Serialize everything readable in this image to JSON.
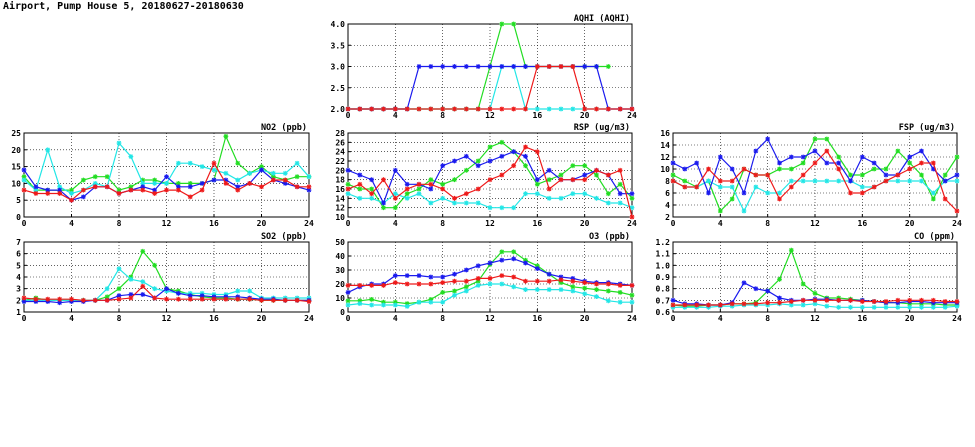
{
  "page": {
    "title": "Airport, Pump House 5, 20180627-20180630"
  },
  "colors": {
    "green": "#22dd22",
    "cyan": "#22e6e6",
    "blue": "#1a1aee",
    "red": "#ee1a1a"
  },
  "chart_data": [
    {
      "id": "aqhi",
      "type": "line",
      "title": "AQHI (AQHI)",
      "x": [
        0,
        1,
        2,
        3,
        4,
        5,
        6,
        7,
        8,
        9,
        10,
        11,
        12,
        13,
        14,
        15,
        16,
        17,
        18,
        19,
        20,
        21,
        22,
        23,
        24
      ],
      "xticks": [
        0,
        4,
        8,
        12,
        16,
        20,
        24
      ],
      "ylim": [
        2.0,
        4.0
      ],
      "yticks": [
        "2.0",
        "2.5",
        "3.0",
        "3.5",
        "4.0"
      ],
      "ytick_values": [
        2.0,
        2.5,
        3.0,
        3.5,
        4.0
      ],
      "series": [
        {
          "color": "green",
          "values": [
            2,
            2,
            2,
            2,
            2,
            2,
            2,
            2,
            2,
            2,
            2,
            2,
            3,
            4,
            4,
            3,
            3,
            3,
            3,
            3,
            3,
            3,
            3,
            null,
            null
          ]
        },
        {
          "color": "cyan",
          "values": [
            2,
            2,
            2,
            2,
            2,
            2,
            2,
            2,
            2,
            2,
            2,
            2,
            2,
            3,
            3,
            2,
            2,
            2,
            2,
            2,
            2,
            2,
            2,
            2,
            2
          ]
        },
        {
          "color": "blue",
          "values": [
            2,
            2,
            2,
            2,
            2,
            2,
            3,
            3,
            3,
            3,
            3,
            3,
            3,
            3,
            3,
            3,
            3,
            3,
            3,
            3,
            3,
            3,
            2,
            2,
            2
          ]
        },
        {
          "color": "red",
          "values": [
            2,
            2,
            2,
            2,
            2,
            2,
            2,
            2,
            2,
            2,
            2,
            2,
            2,
            2,
            2,
            2,
            3,
            3,
            3,
            3,
            2,
            2,
            2,
            2,
            2
          ]
        }
      ]
    },
    {
      "id": "no2",
      "type": "line",
      "title": "NO2 (ppb)",
      "x": [
        0,
        1,
        2,
        3,
        4,
        5,
        6,
        7,
        8,
        9,
        10,
        11,
        12,
        13,
        14,
        15,
        16,
        17,
        18,
        19,
        20,
        21,
        22,
        23,
        24
      ],
      "xticks": [
        0,
        4,
        8,
        12,
        16,
        20,
        24
      ],
      "ylim": [
        0,
        25
      ],
      "yticks": [
        "0",
        "5",
        "10",
        "15",
        "20",
        "25"
      ],
      "ytick_values": [
        0,
        5,
        10,
        15,
        20,
        25
      ],
      "series": [
        {
          "color": "green",
          "values": [
            12,
            8,
            8,
            8,
            8,
            11,
            12,
            12,
            8,
            9,
            11,
            11,
            10,
            10,
            10,
            10,
            11,
            24,
            16,
            13,
            15,
            12,
            11,
            12,
            12
          ]
        },
        {
          "color": "cyan",
          "values": [
            11,
            8,
            20,
            9,
            7,
            8,
            10,
            9,
            22,
            18,
            10,
            10,
            10,
            16,
            16,
            15,
            14,
            13,
            11,
            13,
            14,
            13,
            13,
            16,
            12
          ]
        },
        {
          "color": "blue",
          "values": [
            14,
            9,
            8,
            8,
            5,
            6,
            9,
            9,
            7,
            8,
            9,
            8,
            12,
            9,
            9,
            10,
            11,
            11,
            9,
            10,
            14,
            11,
            10,
            9,
            8
          ]
        },
        {
          "color": "red",
          "values": [
            8,
            7,
            7,
            7,
            5,
            8,
            9,
            9,
            7,
            8,
            8,
            7,
            8,
            8,
            6,
            8,
            16,
            10,
            8,
            10,
            9,
            11,
            11,
            9,
            9
          ]
        }
      ]
    },
    {
      "id": "rsp",
      "type": "line",
      "title": "RSP (ug/m3)",
      "x": [
        0,
        1,
        2,
        3,
        4,
        5,
        6,
        7,
        8,
        9,
        10,
        11,
        12,
        13,
        14,
        15,
        16,
        17,
        18,
        19,
        20,
        21,
        22,
        23,
        24
      ],
      "xticks": [
        0,
        4,
        8,
        12,
        16,
        20,
        24
      ],
      "ylim": [
        10,
        28
      ],
      "yticks": [
        "10",
        "12",
        "14",
        "16",
        "18",
        "20",
        "22",
        "24",
        "26",
        "28"
      ],
      "ytick_values": [
        10,
        12,
        14,
        16,
        18,
        20,
        22,
        24,
        26,
        28
      ],
      "series": [
        {
          "color": "green",
          "values": [
            17,
            16,
            16,
            12,
            12,
            15,
            16,
            18,
            17,
            18,
            20,
            22,
            25,
            26,
            24,
            21,
            17,
            18,
            19,
            21,
            21,
            19,
            15,
            17,
            14
          ]
        },
        {
          "color": "cyan",
          "values": [
            15,
            14,
            14,
            13,
            15,
            14,
            15,
            13,
            14,
            13,
            13,
            13,
            12,
            12,
            12,
            15,
            15,
            14,
            14,
            15,
            15,
            14,
            13,
            13,
            12
          ]
        },
        {
          "color": "blue",
          "values": [
            20,
            19,
            18,
            13,
            20,
            17,
            17,
            16,
            21,
            22,
            23,
            21,
            22,
            23,
            24,
            23,
            18,
            20,
            18,
            18,
            19,
            20,
            19,
            15,
            15
          ]
        },
        {
          "color": "red",
          "values": [
            16,
            17,
            15,
            18,
            14,
            16,
            17,
            17,
            16,
            14,
            15,
            16,
            18,
            19,
            21,
            25,
            24,
            16,
            18,
            18,
            18,
            20,
            19,
            20,
            10
          ]
        }
      ]
    },
    {
      "id": "fsp",
      "type": "line",
      "title": "FSP (ug/m3)",
      "x": [
        0,
        1,
        2,
        3,
        4,
        5,
        6,
        7,
        8,
        9,
        10,
        11,
        12,
        13,
        14,
        15,
        16,
        17,
        18,
        19,
        20,
        21,
        22,
        23,
        24
      ],
      "xticks": [
        0,
        4,
        8,
        12,
        16,
        20,
        24
      ],
      "ylim": [
        2,
        16
      ],
      "yticks": [
        "2",
        "4",
        "6",
        "8",
        "10",
        "12",
        "14",
        "16"
      ],
      "ytick_values": [
        2,
        4,
        6,
        8,
        10,
        12,
        14,
        16
      ],
      "series": [
        {
          "color": "green",
          "values": [
            9,
            8,
            7,
            8,
            3,
            5,
            10,
            9,
            9,
            10,
            10,
            11,
            15,
            15,
            12,
            9,
            9,
            10,
            10,
            13,
            11,
            9,
            5,
            9,
            12
          ]
        },
        {
          "color": "cyan",
          "values": [
            8,
            7,
            7,
            8,
            7,
            7,
            3,
            7,
            6,
            6,
            8,
            8,
            8,
            8,
            8,
            8,
            7,
            7,
            8,
            8,
            8,
            8,
            6,
            8,
            8
          ]
        },
        {
          "color": "blue",
          "values": [
            11,
            10,
            11,
            6,
            12,
            10,
            6,
            13,
            15,
            11,
            12,
            12,
            13,
            11,
            11,
            8,
            12,
            11,
            9,
            9,
            12,
            13,
            10,
            8,
            9
          ]
        },
        {
          "color": "red",
          "values": [
            8,
            7,
            7,
            10,
            8,
            8,
            10,
            9,
            9,
            5,
            7,
            9,
            11,
            13,
            10,
            6,
            6,
            7,
            8,
            9,
            10,
            11,
            11,
            5,
            3
          ]
        }
      ]
    },
    {
      "id": "so2",
      "type": "line",
      "title": "SO2 (ppb)",
      "x": [
        0,
        1,
        2,
        3,
        4,
        5,
        6,
        7,
        8,
        9,
        10,
        11,
        12,
        13,
        14,
        15,
        16,
        17,
        18,
        19,
        20,
        21,
        22,
        23,
        24
      ],
      "xticks": [
        0,
        4,
        8,
        12,
        16,
        20,
        24
      ],
      "ylim": [
        1,
        7
      ],
      "yticks": [
        "1",
        "2",
        "3",
        "4",
        "5",
        "6",
        "7"
      ],
      "ytick_values": [
        1,
        2,
        3,
        4,
        5,
        6,
        7
      ],
      "series": [
        {
          "color": "green",
          "values": [
            2,
            2.2,
            2,
            2,
            2,
            2,
            2,
            2.3,
            3,
            4,
            6.2,
            5,
            3,
            2.8,
            2.5,
            2.3,
            2.2,
            2.2,
            2.1,
            2.1,
            2,
            2,
            2,
            2,
            2
          ]
        },
        {
          "color": "cyan",
          "values": [
            2,
            2,
            2,
            2,
            2,
            2,
            2,
            3,
            4.7,
            3.8,
            3.6,
            3,
            2.8,
            2.6,
            2.6,
            2.6,
            2.5,
            2.5,
            2.8,
            2.8,
            2.2,
            2.2,
            2.2,
            2.2,
            2.2
          ]
        },
        {
          "color": "blue",
          "values": [
            1.9,
            1.9,
            1.9,
            1.8,
            1.9,
            1.9,
            2,
            2,
            2.4,
            2.5,
            2.5,
            2.2,
            3,
            2.6,
            2.4,
            2.4,
            2.3,
            2.3,
            2.3,
            2.2,
            2.1,
            2.1,
            2,
            2,
            2
          ]
        },
        {
          "color": "red",
          "values": [
            2.2,
            2.1,
            2.1,
            2.1,
            2.1,
            2,
            2,
            2,
            2.1,
            2.2,
            3.2,
            2.2,
            2.1,
            2.1,
            2.1,
            2.1,
            2.1,
            2.1,
            2.1,
            2.1,
            2,
            2,
            2,
            2,
            1.9
          ]
        }
      ]
    },
    {
      "id": "o3",
      "type": "line",
      "title": "O3 (ppb)",
      "x": [
        0,
        1,
        2,
        3,
        4,
        5,
        6,
        7,
        8,
        9,
        10,
        11,
        12,
        13,
        14,
        15,
        16,
        17,
        18,
        19,
        20,
        21,
        22,
        23,
        24
      ],
      "xticks": [
        0,
        4,
        8,
        12,
        16,
        20,
        24
      ],
      "ylim": [
        0,
        50
      ],
      "yticks": [
        "0",
        "10",
        "20",
        "30",
        "40",
        "50"
      ],
      "ytick_values": [
        0,
        10,
        20,
        30,
        40,
        50
      ],
      "series": [
        {
          "color": "green",
          "values": [
            8,
            8,
            9,
            7,
            7,
            6,
            7,
            9,
            14,
            15,
            18,
            22,
            34,
            43,
            43,
            37,
            33,
            27,
            21,
            18,
            17,
            16,
            15,
            14,
            12
          ]
        },
        {
          "color": "cyan",
          "values": [
            5,
            6,
            5,
            5,
            5,
            4,
            7,
            7,
            7,
            12,
            15,
            19,
            20,
            20,
            18,
            16,
            16,
            16,
            16,
            15,
            13,
            11,
            8,
            7,
            7
          ]
        },
        {
          "color": "blue",
          "values": [
            14,
            18,
            20,
            20,
            26,
            26,
            26,
            25,
            25,
            27,
            30,
            33,
            35,
            37,
            38,
            35,
            31,
            27,
            25,
            24,
            22,
            21,
            21,
            20,
            19
          ]
        },
        {
          "color": "red",
          "values": [
            19,
            19,
            19,
            19,
            21,
            20,
            20,
            20,
            21,
            22,
            22,
            24,
            24,
            26,
            25,
            22,
            22,
            22,
            23,
            22,
            21,
            20,
            20,
            19,
            19
          ]
        }
      ]
    },
    {
      "id": "co",
      "type": "line",
      "title": "CO (ppm)",
      "x": [
        0,
        1,
        2,
        3,
        4,
        5,
        6,
        7,
        8,
        9,
        10,
        11,
        12,
        13,
        14,
        15,
        16,
        17,
        18,
        19,
        20,
        21,
        22,
        23,
        24
      ],
      "xticks": [
        0,
        4,
        8,
        12,
        16,
        20,
        24
      ],
      "ylim": [
        0.6,
        1.2
      ],
      "yticks": [
        "0.6",
        "0.7",
        "0.8",
        "0.9",
        "1.0",
        "1.1",
        "1.2"
      ],
      "ytick_values": [
        0.6,
        0.7,
        0.8,
        0.9,
        1.0,
        1.1,
        1.2
      ],
      "series": [
        {
          "color": "green",
          "values": [
            0.66,
            0.65,
            0.65,
            0.66,
            0.66,
            0.67,
            0.67,
            0.68,
            0.78,
            0.88,
            1.13,
            0.84,
            0.76,
            0.72,
            0.72,
            0.71,
            0.7,
            0.69,
            0.68,
            0.68,
            0.67,
            0.67,
            0.67,
            0.66,
            0.66
          ]
        },
        {
          "color": "cyan",
          "values": [
            0.64,
            0.64,
            0.64,
            0.64,
            0.65,
            0.65,
            0.66,
            0.66,
            0.66,
            0.67,
            0.66,
            0.66,
            0.67,
            0.65,
            0.64,
            0.64,
            0.64,
            0.64,
            0.64,
            0.64,
            0.64,
            0.64,
            0.64,
            0.64,
            0.65
          ]
        },
        {
          "color": "blue",
          "values": [
            0.7,
            0.67,
            0.67,
            0.66,
            0.66,
            0.68,
            0.85,
            0.8,
            0.78,
            0.72,
            0.7,
            0.7,
            0.71,
            0.71,
            0.7,
            0.7,
            0.7,
            0.69,
            0.68,
            0.68,
            0.69,
            0.69,
            0.68,
            0.68,
            0.68
          ]
        },
        {
          "color": "red",
          "values": [
            0.66,
            0.66,
            0.66,
            0.66,
            0.66,
            0.67,
            0.67,
            0.67,
            0.68,
            0.68,
            0.69,
            0.7,
            0.7,
            0.7,
            0.7,
            0.7,
            0.69,
            0.69,
            0.69,
            0.7,
            0.7,
            0.7,
            0.7,
            0.69,
            0.69
          ]
        }
      ]
    }
  ]
}
